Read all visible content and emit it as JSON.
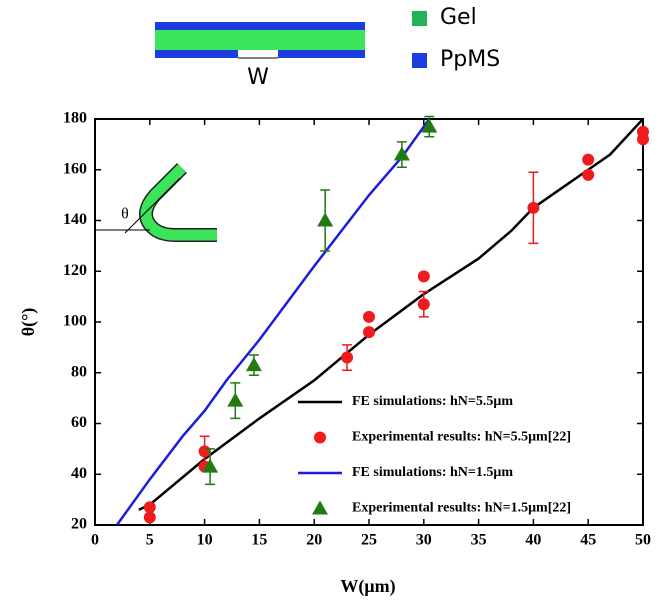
{
  "chart_data": {
    "type": "line",
    "x_label": "W(μm)",
    "y_label": "θ(°)",
    "xlim": [
      0,
      50
    ],
    "ylim": [
      20,
      180
    ],
    "xticks": [
      0,
      5,
      10,
      15,
      20,
      25,
      30,
      35,
      40,
      45,
      50
    ],
    "yticks": [
      20,
      40,
      60,
      80,
      100,
      120,
      140,
      160,
      180
    ],
    "annotations": {
      "gel": "Gel",
      "ppms": "PpMS",
      "width": "W",
      "angle": "θ"
    },
    "series": [
      {
        "name": "FE simulations: hN=5.5μm",
        "color": "#000000",
        "mode": "line",
        "x": [
          4,
          5,
          10,
          15,
          20,
          25,
          30,
          35,
          38,
          40,
          42,
          45,
          47,
          50
        ],
        "values": [
          26,
          28,
          46,
          62,
          77,
          95,
          111,
          125,
          136,
          145,
          151,
          160,
          166,
          180
        ]
      },
      {
        "name": "Experimental results: hN=5.5μm[22]",
        "color": "#ee1c1c",
        "mode": "markers",
        "marker": "circle",
        "x": [
          5,
          5,
          10,
          10,
          23,
          25,
          25,
          30,
          30,
          40,
          45,
          45,
          50,
          50
        ],
        "values": [
          27,
          23,
          49,
          43,
          86,
          102,
          96,
          118,
          107,
          145,
          164,
          158,
          175,
          172
        ],
        "errors": [
          null,
          null,
          6,
          null,
          5,
          null,
          null,
          null,
          5,
          14,
          null,
          null,
          null,
          null
        ]
      },
      {
        "name": "FE simulations: hN=1.5μm",
        "color": "#1c1ce0",
        "mode": "line",
        "x": [
          2,
          5,
          8,
          10,
          12,
          15,
          20,
          25,
          28,
          30.5
        ],
        "values": [
          20,
          38,
          55,
          65,
          77,
          93,
          122,
          150,
          165,
          180
        ]
      },
      {
        "name": "Experimental results: hN=1.5μm[22]",
        "color": "#217a12",
        "mode": "markers",
        "marker": "triangle",
        "x": [
          10.5,
          12.8,
          14.5,
          21,
          28,
          30.5
        ],
        "values": [
          43,
          69,
          83,
          140,
          166,
          177
        ],
        "errors": [
          7,
          7,
          4,
          12,
          5,
          4
        ]
      }
    ]
  }
}
